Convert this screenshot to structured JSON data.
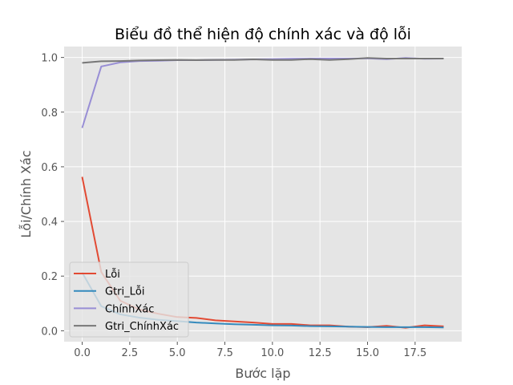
{
  "chart_data": {
    "type": "line",
    "title": "Biểu đồ thể hiện độ chính xác và độ lỗi",
    "xlabel": "Bước lặp",
    "ylabel": "Lỗi/Chính Xác",
    "xlim": [
      -0.95,
      19.95
    ],
    "ylim": [
      -0.04,
      1.04
    ],
    "xticks": [
      0.0,
      2.5,
      5.0,
      7.5,
      10.0,
      12.5,
      15.0,
      17.5
    ],
    "xtick_labels": [
      "0.0",
      "2.5",
      "5.0",
      "7.5",
      "10.0",
      "12.5",
      "15.0",
      "17.5"
    ],
    "yticks": [
      0.0,
      0.2,
      0.4,
      0.6,
      0.8,
      1.0
    ],
    "ytick_labels": [
      "0.0",
      "0.2",
      "0.4",
      "0.6",
      "0.8",
      "1.0"
    ],
    "grid": true,
    "legend_position": "lower-left",
    "x": [
      0,
      1,
      2,
      3,
      4,
      5,
      6,
      7,
      8,
      9,
      10,
      11,
      12,
      13,
      14,
      15,
      16,
      17,
      18,
      19
    ],
    "series": [
      {
        "name": "Lỗi",
        "color": "#E24A33",
        "values": [
          0.563,
          0.215,
          0.11,
          0.078,
          0.062,
          0.05,
          0.047,
          0.038,
          0.034,
          0.03,
          0.025,
          0.025,
          0.02,
          0.02,
          0.015,
          0.013,
          0.018,
          0.011,
          0.02,
          0.016
        ]
      },
      {
        "name": "Gtri_Lỗi",
        "color": "#348ABD",
        "values": [
          0.213,
          0.09,
          0.06,
          0.048,
          0.04,
          0.035,
          0.03,
          0.027,
          0.024,
          0.022,
          0.02,
          0.019,
          0.017,
          0.016,
          0.015,
          0.014,
          0.013,
          0.013,
          0.013,
          0.012
        ]
      },
      {
        "name": "ChínhXác",
        "color": "#988ED5",
        "values": [
          0.742,
          0.967,
          0.982,
          0.987,
          0.988,
          0.99,
          0.99,
          0.991,
          0.992,
          0.993,
          0.994,
          0.995,
          0.996,
          0.996,
          0.996,
          0.997,
          0.994,
          0.998,
          0.995,
          0.996
        ]
      },
      {
        "name": "Gtri_ChínhXác",
        "color": "#777777",
        "values": [
          0.98,
          0.986,
          0.987,
          0.989,
          0.99,
          0.991,
          0.99,
          0.991,
          0.991,
          0.993,
          0.991,
          0.991,
          0.994,
          0.991,
          0.994,
          0.998,
          0.996,
          0.996,
          0.996,
          0.996
        ]
      }
    ]
  }
}
